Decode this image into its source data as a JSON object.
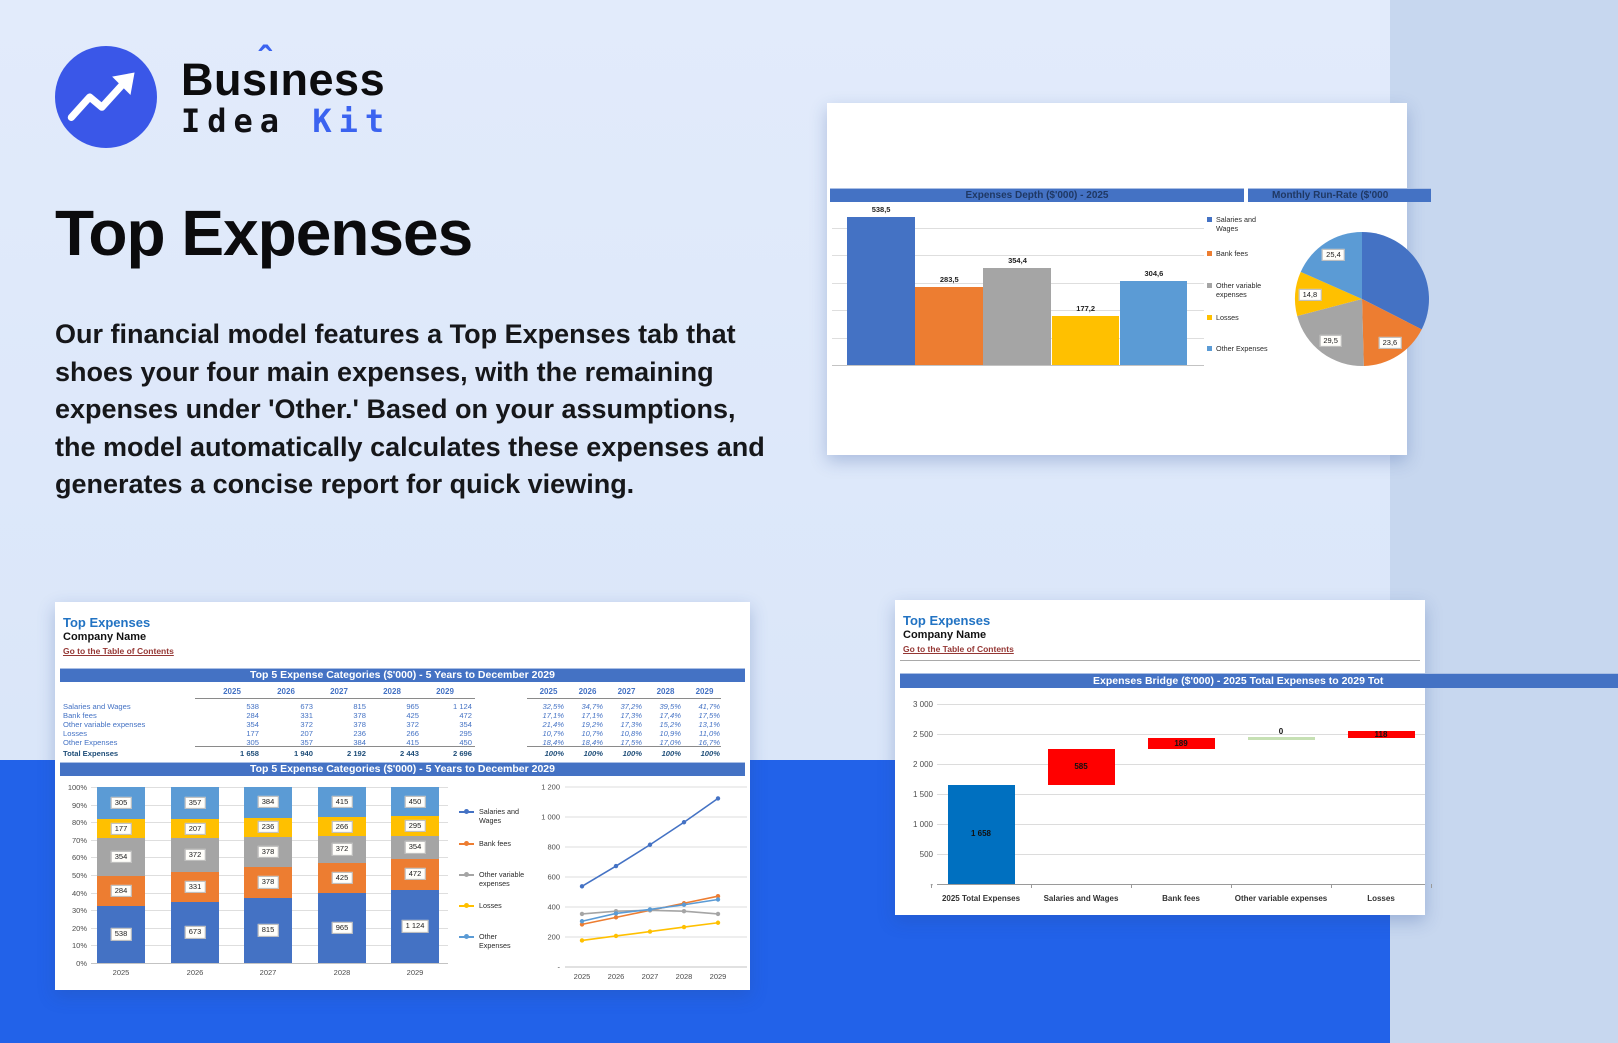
{
  "page": {
    "background_top": "#dfe9fb",
    "bottom_band_color": "#2262e9"
  },
  "logo": {
    "icon": "trend-up-arrow-in-circle",
    "circle_color": "#3a57e8",
    "accent_color": "#3b63f0",
    "word_part1": "Bus",
    "word_part2": "ı",
    "circumflex": "ˆ",
    "word_part3": "ness",
    "line2_word1": "Idea",
    "line2_word2": "Kit"
  },
  "hero": {
    "title": "Top Expenses",
    "paragraph": "Our financial model features a Top Expenses tab that shoes your four main expenses, with the remaining expenses under 'Other.' Based on your assumptions, the model automatically calculates these expenses and generates a concise report for quick viewing."
  },
  "sheets": {
    "bottom_left": {
      "title": "Top Expenses",
      "company": "Company Name",
      "link": "Go to the Table of Contents"
    },
    "bottom_right": {
      "title": "Top Expenses",
      "company": "Company Name",
      "link": "Go to the Table of Contents"
    }
  },
  "table": {
    "years": [
      "2025",
      "2026",
      "2027",
      "2028",
      "2029"
    ],
    "rows": [
      {
        "label": "Salaries and Wages",
        "values": [
          "538",
          "673",
          "815",
          "965",
          "1 124"
        ],
        "pcts": [
          "32,5%",
          "34,7%",
          "37,2%",
          "39,5%",
          "41,7%"
        ]
      },
      {
        "label": "Bank fees",
        "values": [
          "284",
          "331",
          "378",
          "425",
          "472"
        ],
        "pcts": [
          "17,1%",
          "17,1%",
          "17,3%",
          "17,4%",
          "17,5%"
        ]
      },
      {
        "label": "Other variable expenses",
        "values": [
          "354",
          "372",
          "378",
          "372",
          "354"
        ],
        "pcts": [
          "21,4%",
          "19,2%",
          "17,3%",
          "15,2%",
          "13,1%"
        ]
      },
      {
        "label": "Losses",
        "values": [
          "177",
          "207",
          "236",
          "266",
          "295"
        ],
        "pcts": [
          "10,7%",
          "10,7%",
          "10,8%",
          "10,9%",
          "11,0%"
        ]
      },
      {
        "label": "Other Expenses",
        "values": [
          "305",
          "357",
          "384",
          "415",
          "450"
        ],
        "pcts": [
          "18,4%",
          "18,4%",
          "17,5%",
          "17,0%",
          "16,7%"
        ]
      }
    ],
    "total": {
      "label": "Total Expenses",
      "values": [
        "1 658",
        "1 940",
        "2 192",
        "2 443",
        "2 696"
      ],
      "pcts": [
        "100%",
        "100%",
        "100%",
        "100%",
        "100%"
      ]
    }
  },
  "chart_data": [
    {
      "id": "expenses-depth-bar",
      "type": "bar",
      "title": "Expenses Depth ($'000) - 2025",
      "categories": [
        "Salaries and Wages",
        "Bank fees",
        "Other variable expenses",
        "Losses",
        "Other Expenses"
      ],
      "values": [
        538.5,
        283.5,
        354.4,
        177.2,
        304.6
      ],
      "value_labels": [
        "538,5",
        "283,5",
        "354,4",
        "177,2",
        "304,6"
      ],
      "colors": [
        "#4472C4",
        "#ED7D31",
        "#A5A5A5",
        "#FFC000",
        "#5B9BD5"
      ],
      "legend": [
        "Salaries and Wages",
        "Bank fees",
        "Other variable expenses",
        "Losses",
        "Other Expenses"
      ],
      "legend_position": "right",
      "ylim": [
        0,
        600
      ],
      "grid": true
    },
    {
      "id": "monthly-run-rate-pie",
      "type": "pie",
      "title": "Monthly Run-Rate ($'000",
      "slices": [
        {
          "name": "Salaries and Wages",
          "value": 44.9,
          "label": "",
          "color": "#4472C4"
        },
        {
          "name": "Bank fees",
          "value": 23.6,
          "label": "23,6",
          "color": "#ED7D31"
        },
        {
          "name": "Other variable expenses",
          "value": 29.5,
          "label": "29,5",
          "color": "#A5A5A5"
        },
        {
          "name": "Losses",
          "value": 14.8,
          "label": "14,8",
          "color": "#FFC000"
        },
        {
          "name": "Other Expenses",
          "value": 25.4,
          "label": "25,4",
          "color": "#5B9BD5"
        }
      ]
    },
    {
      "id": "top5-stacked-bar",
      "type": "bar",
      "subtype": "stacked-100",
      "title": "Top 5 Expense Categories ($'000) - 5 Years to December 2029",
      "categories": [
        "2025",
        "2026",
        "2027",
        "2028",
        "2029"
      ],
      "y_ticks": [
        "100%",
        "90%",
        "80%",
        "70%",
        "60%",
        "50%",
        "40%",
        "30%",
        "20%",
        "10%",
        "0%"
      ],
      "series": [
        {
          "name": "Salaries and Wages",
          "color": "#4472C4",
          "segment_labels": [
            "538",
            "673",
            "815",
            "965",
            "1 124"
          ],
          "percents": [
            32.5,
            34.7,
            37.2,
            39.5,
            41.7
          ]
        },
        {
          "name": "Bank fees",
          "color": "#ED7D31",
          "segment_labels": [
            "284",
            "331",
            "378",
            "425",
            "472"
          ],
          "percents": [
            17.1,
            17.1,
            17.3,
            17.4,
            17.5
          ]
        },
        {
          "name": "Other variable expenses",
          "color": "#A5A5A5",
          "segment_labels": [
            "354",
            "372",
            "378",
            "372",
            "354"
          ],
          "percents": [
            21.4,
            19.2,
            17.3,
            15.2,
            13.1
          ]
        },
        {
          "name": "Losses",
          "color": "#FFC000",
          "segment_labels": [
            "177",
            "207",
            "236",
            "266",
            "295"
          ],
          "percents": [
            10.7,
            10.7,
            10.8,
            10.9,
            11.0
          ]
        },
        {
          "name": "Other Expenses",
          "color": "#5B9BD5",
          "segment_labels": [
            "305",
            "357",
            "384",
            "415",
            "450"
          ],
          "percents": [
            18.4,
            18.4,
            17.5,
            17.0,
            16.7
          ]
        }
      ]
    },
    {
      "id": "top5-line",
      "type": "line",
      "categories": [
        "2025",
        "2026",
        "2027",
        "2028",
        "2029"
      ],
      "y_ticks": [
        "1 200",
        "1 000",
        "800",
        "600",
        "400",
        "200",
        "-"
      ],
      "ylim": [
        0,
        1200
      ],
      "series": [
        {
          "name": "Salaries and Wages",
          "color": "#4472C4",
          "values": [
            538,
            673,
            815,
            965,
            1124
          ]
        },
        {
          "name": "Bank fees",
          "color": "#ED7D31",
          "values": [
            284,
            331,
            378,
            425,
            472
          ]
        },
        {
          "name": "Other variable expenses",
          "color": "#A5A5A5",
          "values": [
            354,
            372,
            378,
            372,
            354
          ]
        },
        {
          "name": "Losses",
          "color": "#FFC000",
          "values": [
            177,
            207,
            236,
            266,
            295
          ]
        },
        {
          "name": "Other Expenses",
          "color": "#5B9BD5",
          "values": [
            305,
            357,
            384,
            415,
            450
          ]
        }
      ]
    },
    {
      "id": "expenses-bridge-waterfall",
      "type": "bar",
      "subtype": "waterfall",
      "title": "Expenses Bridge ($'000) - 2025 Total Expenses to 2029 Tot",
      "y_ticks": [
        "3 000",
        "2 500",
        "2 000",
        "1 500",
        "1 000",
        "500",
        "-"
      ],
      "ylim": [
        0,
        3000
      ],
      "colors": {
        "total": "#0070C0",
        "increase": "#FF0000",
        "zero": "#C6E0B4"
      },
      "steps": [
        {
          "category": "2025 Total Expenses",
          "label": "1 658",
          "from": 0,
          "to": 1658,
          "kind": "total"
        },
        {
          "category": "Salaries and Wages",
          "label": "585",
          "from": 1658,
          "to": 2243,
          "kind": "increase"
        },
        {
          "category": "Bank fees",
          "label": "189",
          "from": 2243,
          "to": 2432,
          "kind": "increase"
        },
        {
          "category": "Other variable expenses",
          "label": "0",
          "from": 2432,
          "to": 2432,
          "kind": "zero"
        },
        {
          "category": "Losses",
          "label": "118",
          "from": 2432,
          "to": 2550,
          "kind": "increase"
        }
      ]
    }
  ],
  "style_colors": {
    "banner_blue": "#4472C4",
    "banner_text_navy": "#1F3864",
    "sheet_title_blue": "#2273c3",
    "link_maroon": "#953734",
    "table_text_blue": "#4472C4",
    "table_total_blue": "#1F4E79"
  }
}
